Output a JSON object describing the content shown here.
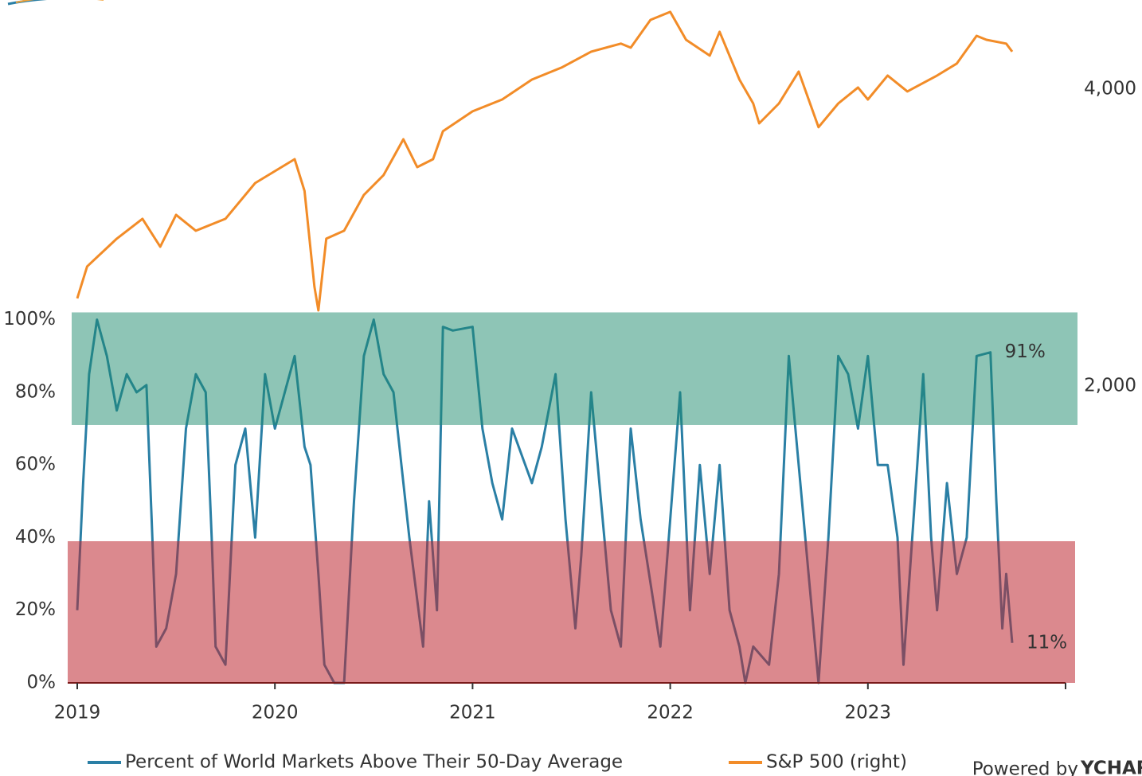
{
  "chart_data": {
    "type": "line",
    "xlim": [
      2019,
      2024
    ],
    "xticks": [
      2019,
      2020,
      2021,
      2022,
      2023
    ],
    "ylim": [
      0,
      188
    ],
    "yticks": [
      {
        "value": 0,
        "label": "0%"
      },
      {
        "value": 20,
        "label": "20%"
      },
      {
        "value": 40,
        "label": "40%"
      },
      {
        "value": 60,
        "label": "60%"
      },
      {
        "value": 80,
        "label": "80%"
      },
      {
        "value": 100,
        "label": "100%"
      }
    ],
    "y2lim": [
      0,
      4600
    ],
    "y2ticks": [
      {
        "value": 2000,
        "label": "2,000"
      },
      {
        "value": 4000,
        "label": "4,000"
      }
    ],
    "bands": [
      {
        "from": 71,
        "to": 102,
        "color": "rgba(30,140,110,0.5)"
      },
      {
        "from": 0,
        "to": 39,
        "color": "rgba(190,40,50,0.55)"
      }
    ],
    "series": [
      {
        "name": "Percent of World Markets Above Their 50-Day Average",
        "color": "#2a7fa5",
        "x": [
          2019.0,
          2019.03,
          2019.06,
          2019.1,
          2019.15,
          2019.2,
          2019.25,
          2019.3,
          2019.35,
          2019.38,
          2019.4,
          2019.45,
          2019.5,
          2019.55,
          2019.6,
          2019.65,
          2019.68,
          2019.7,
          2019.75,
          2019.8,
          2019.85,
          2019.9,
          2019.95,
          2020.0,
          2020.05,
          2020.1,
          2020.15,
          2020.18,
          2020.22,
          2020.25,
          2020.3,
          2020.35,
          2020.4,
          2020.45,
          2020.5,
          2020.55,
          2020.6,
          2020.68,
          2020.75,
          2020.78,
          2020.82,
          2020.85,
          2020.9,
          2021.0,
          2021.05,
          2021.1,
          2021.15,
          2021.2,
          2021.3,
          2021.35,
          2021.42,
          2021.47,
          2021.52,
          2021.55,
          2021.6,
          2021.7,
          2021.75,
          2021.8,
          2021.85,
          2021.95,
          2022.0,
          2022.05,
          2022.1,
          2022.15,
          2022.2,
          2022.25,
          2022.3,
          2022.35,
          2022.38,
          2022.42,
          2022.5,
          2022.55,
          2022.6,
          2022.65,
          2022.7,
          2022.75,
          2022.8,
          2022.85,
          2022.9,
          2022.95,
          2023.0,
          2023.05,
          2023.1,
          2023.15,
          2023.18,
          2023.25,
          2023.28,
          2023.32,
          2023.35,
          2023.4,
          2023.45,
          2023.5,
          2023.55,
          2023.62,
          2023.65,
          2023.68,
          2023.7,
          2023.73
        ],
        "values": [
          20,
          55,
          85,
          100,
          90,
          75,
          85,
          80,
          82,
          40,
          10,
          15,
          30,
          70,
          85,
          80,
          40,
          10,
          5,
          60,
          70,
          40,
          85,
          70,
          80,
          90,
          65,
          60,
          30,
          5,
          0,
          0,
          50,
          90,
          100,
          85,
          80,
          40,
          10,
          50,
          20,
          98,
          97,
          98,
          70,
          55,
          45,
          70,
          55,
          65,
          85,
          45,
          15,
          35,
          80,
          20,
          10,
          70,
          45,
          10,
          45,
          80,
          20,
          60,
          30,
          60,
          20,
          10,
          0,
          10,
          5,
          30,
          90,
          60,
          30,
          0,
          40,
          90,
          85,
          70,
          90,
          60,
          60,
          40,
          5,
          60,
          85,
          40,
          20,
          55,
          30,
          40,
          90,
          91,
          50,
          15,
          30,
          11
        ]
      },
      {
        "name": "S&P 500 (right)",
        "color": "#f28c28",
        "axis": "y2",
        "x": [
          2019.0,
          2019.05,
          2019.2,
          2019.33,
          2019.42,
          2019.5,
          2019.6,
          2019.75,
          2019.9,
          2020.1,
          2020.15,
          2020.2,
          2020.22,
          2020.26,
          2020.35,
          2020.45,
          2020.55,
          2020.65,
          2020.72,
          2020.8,
          2020.85,
          2021.0,
          2021.15,
          2021.3,
          2021.45,
          2021.6,
          2021.75,
          2021.8,
          2021.9,
          2022.0,
          2022.08,
          2022.2,
          2022.25,
          2022.35,
          2022.42,
          2022.45,
          2022.55,
          2022.65,
          2022.75,
          2022.85,
          2022.95,
          2023.0,
          2023.1,
          2023.2,
          2023.35,
          2023.45,
          2023.55,
          2023.6,
          2023.7,
          2023.73
        ],
        "values": [
          2590,
          2805,
          2992,
          3126,
          2938,
          3153,
          3046,
          3126,
          3367,
          3528,
          3314,
          2670,
          2509,
          2992,
          3046,
          3287,
          3421,
          3662,
          3474,
          3528,
          3716,
          3850,
          3930,
          4064,
          4145,
          4252,
          4306,
          4279,
          4466,
          4520,
          4332,
          4225,
          4386,
          4064,
          3903,
          3769,
          3903,
          4118,
          3743,
          3903,
          4011,
          3930,
          4091,
          3984,
          4091,
          4172,
          4359,
          4332,
          4306,
          4252
        ]
      }
    ],
    "annotations": [
      {
        "label": "91%",
        "value": 91,
        "x": 2023.62
      },
      {
        "label": "11%",
        "value": 11,
        "x": 2023.73
      }
    ],
    "branding": {
      "prefix": "Powered by",
      "name": "YCHAR"
    }
  }
}
